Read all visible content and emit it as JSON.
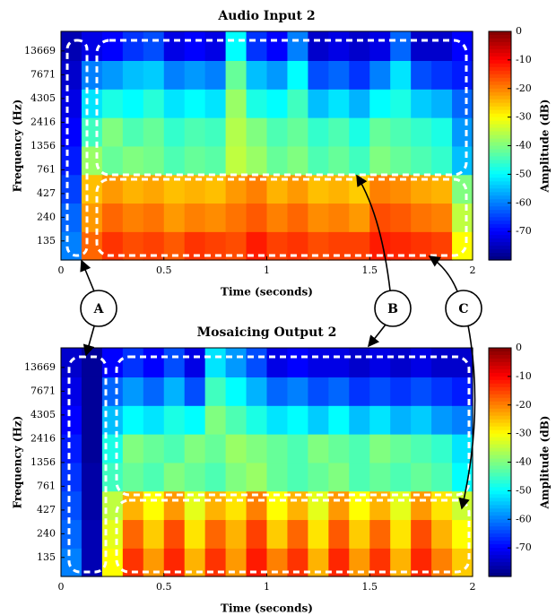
{
  "chart_data": [
    {
      "type": "heatmap",
      "title": "Audio Input 2",
      "xlabel": "Time (seconds)",
      "ylabel": "Frequency (Hz)",
      "xlim": [
        0,
        2
      ],
      "xticks": [
        0,
        0.5,
        1,
        1.5,
        2
      ],
      "ylim": [
        85,
        22000
      ],
      "log_y": true,
      "yticks": [
        135,
        240,
        427,
        761,
        1356,
        2416,
        4305,
        7671,
        13669
      ],
      "x": [
        0.05,
        0.15,
        0.25,
        0.35,
        0.45,
        0.55,
        0.65,
        0.75,
        0.85,
        0.95,
        1.05,
        1.15,
        1.25,
        1.35,
        1.45,
        1.55,
        1.65,
        1.75,
        1.85,
        1.95
      ],
      "y": [
        120,
        240,
        480,
        960,
        1920,
        3840,
        7680,
        15360
      ],
      "z": [
        [
          -60,
          -18,
          -14,
          -16,
          -15,
          -17,
          -14,
          -15,
          -16,
          -12,
          -15,
          -14,
          -16,
          -15,
          -15,
          -12,
          -13,
          -14,
          -15,
          -30
        ],
        [
          -62,
          -22,
          -18,
          -20,
          -19,
          -22,
          -20,
          -21,
          -19,
          -17,
          -20,
          -18,
          -21,
          -20,
          -22,
          -16,
          -17,
          -19,
          -20,
          -35
        ],
        [
          -65,
          -25,
          -22,
          -24,
          -23,
          -25,
          -24,
          -25,
          -22,
          -20,
          -24,
          -22,
          -25,
          -24,
          -26,
          -20,
          -21,
          -23,
          -24,
          -40
        ],
        [
          -68,
          -38,
          -42,
          -40,
          -41,
          -44,
          -42,
          -43,
          -35,
          -38,
          -42,
          -40,
          -44,
          -42,
          -45,
          -40,
          -42,
          -44,
          -46,
          -55
        ],
        [
          -70,
          -45,
          -40,
          -44,
          -42,
          -46,
          -44,
          -45,
          -36,
          -40,
          -44,
          -42,
          -46,
          -44,
          -48,
          -42,
          -44,
          -46,
          -48,
          -58
        ],
        [
          -72,
          -52,
          -48,
          -50,
          -47,
          -52,
          -50,
          -52,
          -38,
          -48,
          -50,
          -45,
          -55,
          -52,
          -56,
          -50,
          -48,
          -54,
          -56,
          -62
        ],
        [
          -74,
          -60,
          -58,
          -55,
          -54,
          -60,
          -58,
          -60,
          -42,
          -55,
          -58,
          -50,
          -64,
          -62,
          -66,
          -60,
          -52,
          -64,
          -66,
          -68
        ],
        [
          -76,
          -72,
          -70,
          -66,
          -64,
          -72,
          -70,
          -72,
          -50,
          -66,
          -70,
          -60,
          -74,
          -72,
          -74,
          -72,
          -62,
          -74,
          -74,
          -70
        ]
      ],
      "colorbar_label": "Amplitude (dB)",
      "zlim": [
        -80,
        0
      ],
      "zticks": [
        0,
        -10,
        -20,
        -30,
        -40,
        -50,
        -60,
        -70
      ],
      "colormap": "jet"
    },
    {
      "type": "heatmap",
      "title": "Mosaicing Output 2",
      "xlabel": "Time (seconds)",
      "ylabel": "Frequency (Hz)",
      "xlim": [
        0,
        2
      ],
      "xticks": [
        0,
        0.5,
        1,
        1.5,
        2
      ],
      "ylim": [
        85,
        22000
      ],
      "log_y": true,
      "yticks": [
        135,
        240,
        427,
        761,
        1356,
        2416,
        4305,
        7671,
        13669
      ],
      "x": [
        0.05,
        0.15,
        0.25,
        0.35,
        0.45,
        0.55,
        0.65,
        0.75,
        0.85,
        0.95,
        1.05,
        1.15,
        1.25,
        1.35,
        1.45,
        1.55,
        1.65,
        1.75,
        1.85,
        1.95
      ],
      "y": [
        120,
        240,
        480,
        960,
        1920,
        3840,
        7680,
        15360
      ],
      "z": [
        [
          -60,
          -76,
          -30,
          -14,
          -22,
          -13,
          -24,
          -14,
          -22,
          -12,
          -20,
          -14,
          -24,
          -13,
          -22,
          -14,
          -24,
          -13,
          -20,
          -26
        ],
        [
          -62,
          -76,
          -32,
          -18,
          -26,
          -16,
          -28,
          -18,
          -24,
          -15,
          -26,
          -18,
          -28,
          -17,
          -26,
          -18,
          -28,
          -16,
          -24,
          -30
        ],
        [
          -64,
          -77,
          -35,
          -24,
          -30,
          -22,
          -32,
          -24,
          -28,
          -20,
          -30,
          -24,
          -32,
          -22,
          -30,
          -24,
          -32,
          -22,
          -28,
          -34
        ],
        [
          -66,
          -77,
          -45,
          -42,
          -44,
          -40,
          -42,
          -44,
          -40,
          -38,
          -42,
          -44,
          -42,
          -40,
          -44,
          -42,
          -44,
          -42,
          -44,
          -50
        ],
        [
          -68,
          -78,
          -48,
          -40,
          -42,
          -44,
          -40,
          -42,
          -38,
          -40,
          -42,
          -44,
          -40,
          -42,
          -44,
          -40,
          -42,
          -44,
          -46,
          -52
        ],
        [
          -70,
          -78,
          -55,
          -50,
          -52,
          -48,
          -50,
          -40,
          -44,
          -48,
          -52,
          -50,
          -54,
          -50,
          -55,
          -52,
          -56,
          -54,
          -58,
          -60
        ],
        [
          -72,
          -78,
          -62,
          -58,
          -62,
          -56,
          -64,
          -45,
          -50,
          -56,
          -62,
          -60,
          -64,
          -62,
          -66,
          -64,
          -66,
          -64,
          -66,
          -68
        ],
        [
          -74,
          -78,
          -70,
          -66,
          -70,
          -64,
          -72,
          -52,
          -58,
          -64,
          -72,
          -70,
          -72,
          -72,
          -74,
          -72,
          -74,
          -72,
          -74,
          -74
        ]
      ],
      "colorbar_label": "Amplitude (dB)",
      "zlim": [
        -80,
        0
      ],
      "zticks": [
        0,
        -10,
        -20,
        -30,
        -40,
        -50,
        -60,
        -70
      ],
      "colormap": "jet"
    }
  ],
  "annotations": [
    "A",
    "B",
    "C"
  ]
}
